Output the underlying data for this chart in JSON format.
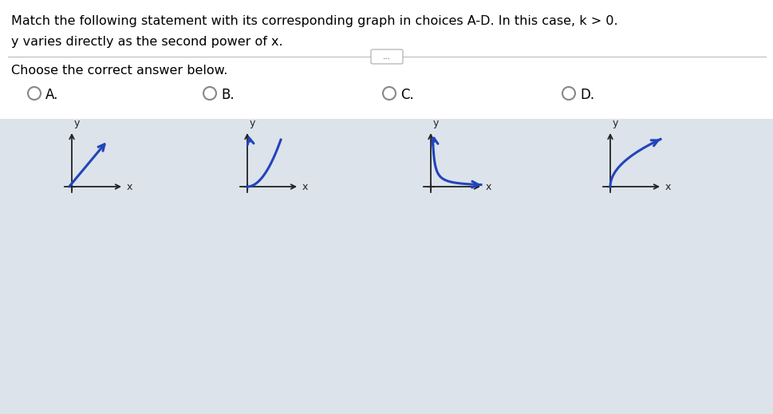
{
  "title_text": "Match the following statement with its corresponding graph in choices A-D. In this case, k > 0.",
  "subtitle_text": "y varies directly as the second power of x.",
  "choose_text": "Choose the correct answer below.",
  "graph_line_color": "#2244bb",
  "axis_color": "#222222",
  "bg_color": "#dce3ea",
  "options": [
    "A.",
    "B.",
    "C.",
    "D."
  ],
  "dots_text": "..."
}
